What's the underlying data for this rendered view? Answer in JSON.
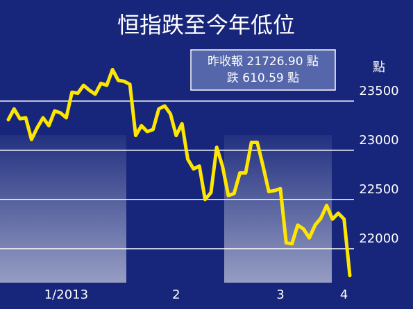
{
  "chart_data": {
    "type": "line",
    "title": "恒指跌至今年低位",
    "annotations": [
      "昨收報 21726.90 點",
      "跌 610.59 點"
    ],
    "unit_label": "點",
    "categories": [
      null,
      null,
      null,
      null,
      null,
      null,
      null,
      null,
      null,
      null,
      "1/2013",
      null,
      null,
      null,
      null,
      null,
      null,
      null,
      null,
      null,
      null,
      null,
      null,
      null,
      null,
      null,
      null,
      null,
      null,
      "2",
      null,
      null,
      null,
      null,
      null,
      null,
      null,
      null,
      null,
      null,
      null,
      null,
      null,
      null,
      null,
      null,
      null,
      "3",
      null,
      null,
      null,
      null,
      null,
      null,
      null,
      null,
      null,
      null,
      "4",
      null
    ],
    "values": [
      23310,
      23420,
      23320,
      23330,
      23110,
      23230,
      23330,
      23250,
      23400,
      23380,
      23330,
      23590,
      23580,
      23660,
      23610,
      23570,
      23680,
      23660,
      23820,
      23710,
      23700,
      23670,
      23150,
      23250,
      23190,
      23210,
      23420,
      23450,
      23370,
      23150,
      23270,
      22910,
      22810,
      22840,
      22500,
      22570,
      23030,
      22840,
      22540,
      22560,
      22770,
      22770,
      23080,
      23080,
      22840,
      22580,
      22590,
      22610,
      22060,
      22050,
      22240,
      22200,
      22110,
      22240,
      22310,
      22440,
      22300,
      22360,
      22300,
      21727
    ],
    "color": "#ffe600",
    "ylim": [
      21650,
      24050
    ],
    "yticks": [
      22000,
      22500,
      23000,
      23500
    ],
    "grid": true
  }
}
